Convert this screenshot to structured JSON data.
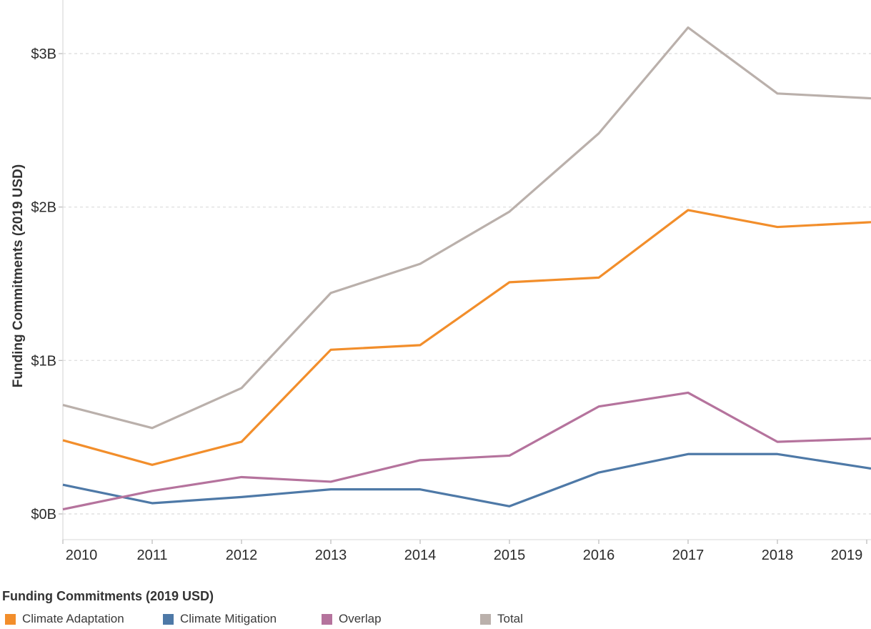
{
  "chart": {
    "y_axis_title": "Funding Commitments (2019 USD)"
  },
  "legend": {
    "title": "Funding Commitments (2019 USD)"
  },
  "colors": {
    "background": "#ffffff",
    "gridline": "#e1e1e1",
    "axis_line": "#d9d9d9",
    "tick_mark": "#b9b9b9",
    "tick_label": "#2b2b2b",
    "title_text": "#333333",
    "legend_text": "#3a3a3a"
  },
  "chart_data": {
    "type": "line",
    "title": "",
    "xlabel": "",
    "ylabel": "Funding Commitments (2019 USD)",
    "x": [
      2010,
      2011,
      2012,
      2013,
      2014,
      2015,
      2016,
      2017,
      2018,
      2019
    ],
    "x_tick_labels": [
      "2010",
      "2011",
      "2012",
      "2013",
      "2014",
      "2015",
      "2016",
      "2017",
      "2018",
      "2019"
    ],
    "y_tick_labels": [
      "$0B",
      "$1B",
      "$2B",
      "$3B"
    ],
    "y_tick_values": [
      0,
      1,
      2,
      3
    ],
    "ylim": [
      -0.17,
      3.35
    ],
    "grid": "horizontal dashed",
    "legend_position": "bottom",
    "series": [
      {
        "name": "Climate Adaptation",
        "color": "#F28E2B",
        "values": [
          0.48,
          0.32,
          0.47,
          1.07,
          1.1,
          1.51,
          1.54,
          1.98,
          1.87,
          1.9
        ]
      },
      {
        "name": "Climate Mitigation",
        "color": "#4E79A7",
        "values": [
          0.19,
          0.07,
          0.11,
          0.16,
          0.16,
          0.05,
          0.27,
          0.39,
          0.39,
          0.3
        ]
      },
      {
        "name": "Overlap",
        "color": "#B5739D",
        "values": [
          0.03,
          0.15,
          0.24,
          0.21,
          0.35,
          0.38,
          0.7,
          0.79,
          0.47,
          0.49
        ]
      },
      {
        "name": "Total",
        "color": "#BAB0AB",
        "values": [
          0.71,
          0.56,
          0.82,
          1.44,
          1.63,
          1.97,
          2.48,
          3.17,
          2.74,
          2.71
        ]
      }
    ]
  }
}
